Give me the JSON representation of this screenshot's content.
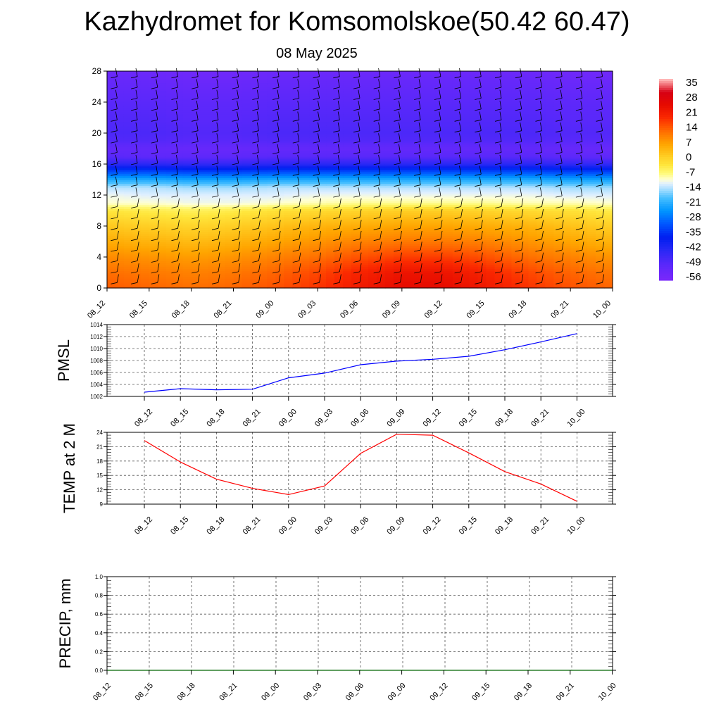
{
  "title": "Kazhydromet for Komsomolskoe(50.42 60.47)",
  "date": "08 May 2025",
  "time_labels": [
    "08_12",
    "08_15",
    "08_18",
    "08_21",
    "09_00",
    "09_03",
    "09_06",
    "09_09",
    "09_12",
    "09_15",
    "09_18",
    "09_21",
    "10_00"
  ],
  "colorbar": {
    "labels": [
      "35",
      "28",
      "21",
      "14",
      "7",
      "0",
      "-7",
      "-14",
      "-21",
      "-28",
      "-35",
      "-42",
      "-49",
      "-56"
    ]
  },
  "chart_data": [
    {
      "type": "heatmap",
      "title": "",
      "x": [
        "08_12",
        "08_15",
        "08_18",
        "08_21",
        "09_00",
        "09_03",
        "09_06",
        "09_09",
        "09_12",
        "09_15",
        "09_18",
        "09_21",
        "10_00"
      ],
      "ylim": [
        0,
        28
      ],
      "yticks": [
        "0",
        "4",
        "8",
        "12",
        "16",
        "20",
        "24",
        "28"
      ],
      "levels": [
        0,
        2,
        4,
        6,
        8,
        10,
        11,
        12,
        13,
        14,
        15,
        16,
        17,
        18,
        19,
        20,
        22,
        24,
        26,
        28
      ],
      "values": [
        [
          13,
          12,
          11,
          12,
          14,
          17,
          21,
          24,
          24,
          21,
          17,
          14,
          12
        ],
        [
          11,
          10,
          9,
          10,
          12,
          15,
          19,
          22,
          22,
          19,
          15,
          12,
          10
        ],
        [
          8,
          7,
          6,
          7,
          9,
          11,
          14,
          16,
          16,
          14,
          11,
          9,
          7
        ],
        [
          4,
          3,
          2,
          3,
          5,
          7,
          9,
          10,
          10,
          9,
          7,
          5,
          3
        ],
        [
          0,
          -1,
          -2,
          -1,
          1,
          3,
          4,
          5,
          5,
          4,
          3,
          1,
          -1
        ],
        [
          -5,
          -6,
          -7,
          -6,
          -4,
          -3,
          -2,
          -1,
          -1,
          -2,
          -3,
          -4,
          -6
        ],
        [
          -12,
          -12,
          -13,
          -13,
          -12,
          -11,
          -10,
          -10,
          -10,
          -10,
          -11,
          -11,
          -12
        ],
        [
          -13,
          -14,
          -14,
          -14,
          -14,
          -13,
          -13,
          -13,
          -13,
          -13,
          -13,
          -14,
          -14
        ],
        [
          -16,
          -16,
          -17,
          -17,
          -16,
          -16,
          -16,
          -16,
          -16,
          -16,
          -16,
          -17,
          -17
        ],
        [
          -24,
          -24,
          -25,
          -25,
          -24,
          -24,
          -24,
          -24,
          -24,
          -24,
          -24,
          -25,
          -25
        ],
        [
          -34,
          -34,
          -35,
          -35,
          -34,
          -34,
          -34,
          -34,
          -34,
          -34,
          -34,
          -35,
          -35
        ],
        [
          -46,
          -46,
          -47,
          -47,
          -46,
          -46,
          -46,
          -46,
          -46,
          -46,
          -46,
          -47,
          -47
        ],
        [
          -53,
          -54,
          -54,
          -54,
          -53,
          -53,
          -53,
          -53,
          -53,
          -53,
          -53,
          -54,
          -54
        ],
        [
          -55,
          -55,
          -56,
          -56,
          -55,
          -55,
          -55,
          -55,
          -55,
          -55,
          -55,
          -56,
          -56
        ],
        [
          -52,
          -52,
          -53,
          -53,
          -52,
          -52,
          -52,
          -52,
          -52,
          -52,
          -52,
          -53,
          -53
        ],
        [
          -51,
          -51,
          -52,
          -52,
          -51,
          -51,
          -51,
          -51,
          -51,
          -51,
          -51,
          -52,
          -52
        ],
        [
          -52,
          -52,
          -53,
          -53,
          -52,
          -52,
          -52,
          -52,
          -52,
          -52,
          -52,
          -53,
          -53
        ],
        [
          -53,
          -53,
          -54,
          -54,
          -53,
          -53,
          -53,
          -53,
          -53,
          -53,
          -53,
          -54,
          -54
        ],
        [
          -55,
          -55,
          -56,
          -56,
          -55,
          -55,
          -55,
          -55,
          -55,
          -55,
          -55,
          -56,
          -56
        ],
        [
          -57,
          -57,
          -58,
          -58,
          -57,
          -57,
          -57,
          -57,
          -57,
          -57,
          -57,
          -58,
          -58
        ]
      ]
    },
    {
      "type": "line",
      "ylabel": "PMSL",
      "x": [
        "08_12",
        "08_15",
        "08_18",
        "08_21",
        "09_00",
        "09_03",
        "09_06",
        "09_09",
        "09_12",
        "09_15",
        "09_18",
        "09_21",
        "10_00"
      ],
      "ylim": [
        1002,
        1014
      ],
      "yticks": [
        "1002",
        "1004",
        "1006",
        "1008",
        "1010",
        "1012",
        "1014"
      ],
      "series": [
        {
          "values": [
            1002.7,
            1003.3,
            1003.1,
            1003.2,
            1005.1,
            1005.9,
            1007.3,
            1007.9,
            1008.2,
            1008.7,
            1009.8,
            1011.1,
            1012.5
          ],
          "color": "#0000ff"
        }
      ],
      "grid": true
    },
    {
      "type": "line",
      "ylabel": "TEMP at 2 M",
      "x": [
        "08_12",
        "08_15",
        "08_18",
        "08_21",
        "09_00",
        "09_03",
        "09_06",
        "09_09",
        "09_12",
        "09_15",
        "09_18",
        "09_21",
        "10_00"
      ],
      "ylim": [
        9,
        24
      ],
      "yticks": [
        "9",
        "12",
        "15",
        "18",
        "21",
        "24"
      ],
      "series": [
        {
          "values": [
            22.3,
            17.8,
            14.2,
            12.3,
            11.0,
            12.8,
            19.6,
            23.6,
            23.4,
            19.7,
            15.8,
            13.2,
            9.6
          ],
          "color": "#ff0000"
        }
      ],
      "grid": true
    },
    {
      "type": "line",
      "ylabel": "PRECIP, mm",
      "x": [
        "08_12",
        "08_15",
        "08_18",
        "08_21",
        "09_00",
        "09_03",
        "09_06",
        "09_09",
        "09_12",
        "09_15",
        "09_18",
        "09_21",
        "10_00"
      ],
      "ylim": [
        0,
        1
      ],
      "yticks": [
        "0.0",
        "0.2",
        "0.4",
        "0.6",
        "0.8",
        "1.0"
      ],
      "series": [
        {
          "values": [
            0,
            0,
            0,
            0,
            0,
            0,
            0,
            0,
            0,
            0,
            0,
            0,
            0
          ],
          "color": "#006400"
        }
      ],
      "grid": true
    }
  ]
}
